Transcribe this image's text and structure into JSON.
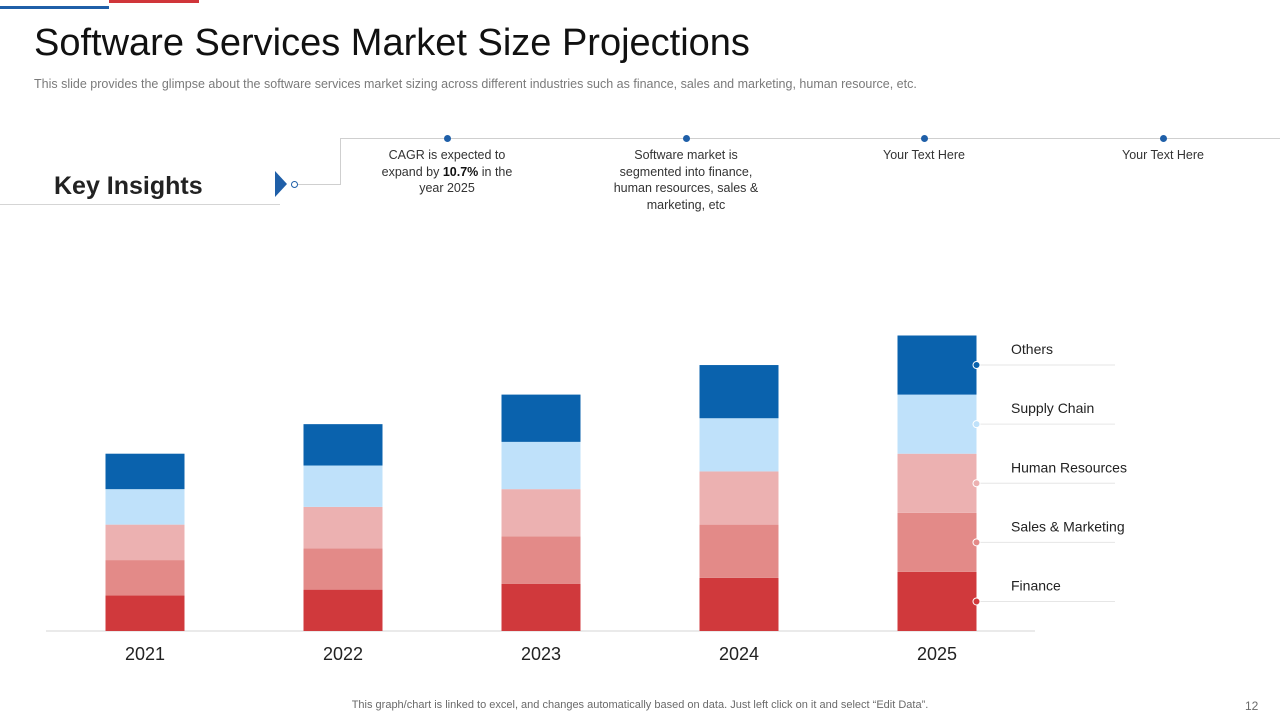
{
  "slide": {
    "title": "Software Services Market Size Projections",
    "subtitle": "This slide provides  the glimpse about the software  services market sizing across different  industries such as finance,  sales and marketing, human resource, etc.",
    "footnote": "This graph/chart is linked to excel,  and changes automatically based on data. Just left click on it and select “Edit Data”.",
    "page_number": "12"
  },
  "key_insights": {
    "heading": "Key Insights",
    "items": [
      {
        "pre": "CAGR is expected to expand by ",
        "bold": "10.7%",
        "post": " in the year 2025"
      },
      {
        "pre": "Software  market is segmented into finance, human resources, sales & marketing, etc",
        "bold": "",
        "post": ""
      },
      {
        "pre": "Your Text Here",
        "bold": "",
        "post": ""
      },
      {
        "pre": "Your Text Here",
        "bold": "",
        "post": ""
      }
    ]
  },
  "chart_data": {
    "type": "bar",
    "stacked": true,
    "categories": [
      "2021",
      "2022",
      "2023",
      "2024",
      "2025"
    ],
    "series": [
      {
        "name": "Finance",
        "color": "#d0393c",
        "values": [
          1.2,
          1.4,
          1.6,
          1.8,
          2.0
        ]
      },
      {
        "name": "Sales & Marketing",
        "color": "#e38a88",
        "values": [
          1.2,
          1.4,
          1.6,
          1.8,
          2.0
        ]
      },
      {
        "name": "Human Resources",
        "color": "#ecb1b1",
        "values": [
          1.2,
          1.4,
          1.6,
          1.8,
          2.0
        ]
      },
      {
        "name": "Supply Chain",
        "color": "#bfe1fa",
        "values": [
          1.2,
          1.4,
          1.6,
          1.8,
          2.0
        ]
      },
      {
        "name": "Others",
        "color": "#0a62ad",
        "values": [
          1.2,
          1.4,
          1.6,
          1.8,
          2.0
        ]
      }
    ],
    "ylim": [
      0,
      10
    ],
    "legend_position": "right",
    "title": "",
    "xlabel": "",
    "ylabel": ""
  }
}
